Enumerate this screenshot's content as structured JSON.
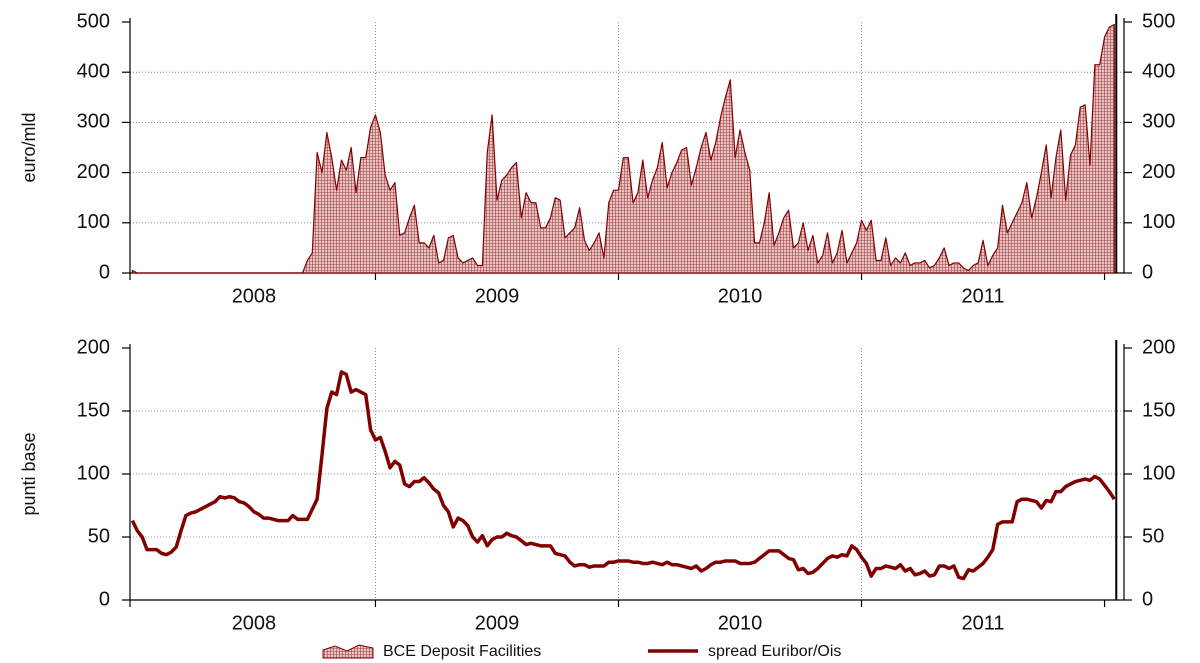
{
  "chart_data": [
    {
      "type": "area",
      "ylabel": "euro/mld",
      "x": [
        2008,
        2008.02,
        2008.04,
        2008.06,
        2008.08,
        2008.1,
        2008.12,
        2008.14,
        2008.16,
        2008.18,
        2008.2,
        2008.22,
        2008.24,
        2008.26,
        2008.28,
        2008.3,
        2008.32,
        2008.34,
        2008.36,
        2008.38,
        2008.4,
        2008.42,
        2008.44,
        2008.46,
        2008.48,
        2008.5,
        2008.52,
        2008.54,
        2008.56,
        2008.58,
        2008.6,
        2008.62,
        2008.64,
        2008.66,
        2008.68,
        2008.7,
        2008.72,
        2008.74,
        2008.76,
        2008.78,
        2008.8,
        2008.82,
        2008.84,
        2008.86,
        2008.88,
        2008.9,
        2008.92,
        2008.94,
        2008.96,
        2008.98,
        2009,
        2009.02,
        2009.04,
        2009.06,
        2009.08,
        2009.1,
        2009.12,
        2009.14,
        2009.16,
        2009.18,
        2009.2,
        2009.22,
        2009.24,
        2009.26,
        2009.28,
        2009.3,
        2009.32,
        2009.34,
        2009.36,
        2009.38,
        2009.4,
        2009.42,
        2009.44,
        2009.46,
        2009.48,
        2009.5,
        2009.52,
        2009.54,
        2009.56,
        2009.58,
        2009.6,
        2009.62,
        2009.64,
        2009.66,
        2009.68,
        2009.7,
        2009.72,
        2009.74,
        2009.76,
        2009.78,
        2009.8,
        2009.82,
        2009.84,
        2009.86,
        2009.88,
        2009.9,
        2009.92,
        2009.94,
        2009.96,
        2009.98,
        2010,
        2010.02,
        2010.04,
        2010.06,
        2010.08,
        2010.1,
        2010.12,
        2010.14,
        2010.16,
        2010.18,
        2010.2,
        2010.22,
        2010.24,
        2010.26,
        2010.28,
        2010.3,
        2010.32,
        2010.34,
        2010.36,
        2010.38,
        2010.4,
        2010.42,
        2010.44,
        2010.46,
        2010.48,
        2010.5,
        2010.52,
        2010.54,
        2010.56,
        2010.58,
        2010.6,
        2010.62,
        2010.64,
        2010.66,
        2010.68,
        2010.7,
        2010.72,
        2010.74,
        2010.76,
        2010.78,
        2010.8,
        2010.82,
        2010.84,
        2010.86,
        2010.88,
        2010.9,
        2010.92,
        2010.94,
        2010.96,
        2010.98,
        2011,
        2011.02,
        2011.04,
        2011.06,
        2011.08,
        2011.1,
        2011.12,
        2011.14,
        2011.16,
        2011.18,
        2011.2,
        2011.22,
        2011.24,
        2011.26,
        2011.28,
        2011.3,
        2011.32,
        2011.34,
        2011.36,
        2011.38,
        2011.4,
        2011.42,
        2011.44,
        2011.46,
        2011.48,
        2011.5,
        2011.52,
        2011.54,
        2011.56,
        2011.58,
        2011.6,
        2011.62,
        2011.64,
        2011.66,
        2011.68,
        2011.7,
        2011.72,
        2011.74,
        2011.76,
        2011.78,
        2011.8,
        2011.82,
        2011.84,
        2011.86,
        2011.88,
        2011.9,
        2011.92,
        2011.94,
        2011.96,
        2011.98,
        2012,
        2012.02,
        2012.04
      ],
      "series": [
        {
          "name": "BCE Deposit Facilities",
          "color": "#800000",
          "values": [
            5,
            0,
            0,
            0,
            0,
            0,
            0,
            0,
            0,
            0,
            0,
            0,
            0,
            0,
            0,
            0,
            0,
            0,
            0,
            0,
            0,
            0,
            0,
            0,
            0,
            0,
            0,
            0,
            0,
            0,
            0,
            0,
            0,
            0,
            0,
            0,
            25,
            40,
            240,
            200,
            280,
            230,
            165,
            225,
            205,
            250,
            160,
            230,
            230,
            290,
            315,
            280,
            195,
            165,
            180,
            75,
            80,
            110,
            135,
            60,
            60,
            50,
            75,
            20,
            25,
            70,
            75,
            30,
            20,
            25,
            30,
            15,
            15,
            240,
            315,
            145,
            185,
            195,
            210,
            220,
            110,
            160,
            140,
            140,
            90,
            90,
            110,
            150,
            145,
            70,
            80,
            90,
            130,
            65,
            45,
            60,
            80,
            30,
            140,
            165,
            165,
            230,
            230,
            140,
            160,
            225,
            150,
            185,
            210,
            260,
            170,
            200,
            220,
            245,
            250,
            175,
            210,
            250,
            280,
            225,
            260,
            310,
            350,
            385,
            230,
            285,
            240,
            205,
            60,
            60,
            100,
            160,
            55,
            80,
            110,
            125,
            50,
            60,
            100,
            45,
            75,
            20,
            35,
            80,
            20,
            40,
            85,
            20,
            40,
            60,
            105,
            85,
            105,
            25,
            25,
            70,
            15,
            30,
            20,
            40,
            15,
            20,
            20,
            25,
            10,
            15,
            30,
            50,
            15,
            20,
            20,
            10,
            5,
            15,
            20,
            65,
            15,
            35,
            50,
            135,
            80,
            100,
            120,
            140,
            180,
            110,
            150,
            200,
            255,
            150,
            230,
            285,
            145,
            235,
            255,
            330,
            335,
            215,
            415,
            415,
            470,
            490,
            495
          ]
        }
      ],
      "xlim": [
        2007.99,
        2012.08
      ],
      "xticks": [
        {
          "value": 2008.5,
          "label": "2008"
        },
        {
          "value": 2009.5,
          "label": "2009"
        },
        {
          "value": 2010.5,
          "label": "2010"
        },
        {
          "value": 2011.5,
          "label": "2011"
        }
      ],
      "ylim": [
        0,
        500
      ],
      "yticks": [
        0,
        100,
        200,
        300,
        400,
        500
      ],
      "grid": true
    },
    {
      "type": "line",
      "ylabel": "punti base",
      "x": [
        2008,
        2008.02,
        2008.04,
        2008.06,
        2008.08,
        2008.1,
        2008.12,
        2008.14,
        2008.16,
        2008.18,
        2008.2,
        2008.22,
        2008.24,
        2008.26,
        2008.28,
        2008.3,
        2008.32,
        2008.34,
        2008.36,
        2008.38,
        2008.4,
        2008.42,
        2008.44,
        2008.46,
        2008.48,
        2008.5,
        2008.52,
        2008.54,
        2008.56,
        2008.58,
        2008.6,
        2008.62,
        2008.64,
        2008.66,
        2008.68,
        2008.7,
        2008.72,
        2008.74,
        2008.76,
        2008.78,
        2008.8,
        2008.82,
        2008.84,
        2008.86,
        2008.88,
        2008.9,
        2008.92,
        2008.94,
        2008.96,
        2008.98,
        2009,
        2009.02,
        2009.04,
        2009.06,
        2009.08,
        2009.1,
        2009.12,
        2009.14,
        2009.16,
        2009.18,
        2009.2,
        2009.22,
        2009.24,
        2009.26,
        2009.28,
        2009.3,
        2009.32,
        2009.34,
        2009.36,
        2009.38,
        2009.4,
        2009.42,
        2009.44,
        2009.46,
        2009.48,
        2009.5,
        2009.52,
        2009.54,
        2009.56,
        2009.58,
        2009.6,
        2009.62,
        2009.64,
        2009.66,
        2009.68,
        2009.7,
        2009.72,
        2009.74,
        2009.76,
        2009.78,
        2009.8,
        2009.82,
        2009.84,
        2009.86,
        2009.88,
        2009.9,
        2009.92,
        2009.94,
        2009.96,
        2009.98,
        2010,
        2010.02,
        2010.04,
        2010.06,
        2010.08,
        2010.1,
        2010.12,
        2010.14,
        2010.16,
        2010.18,
        2010.2,
        2010.22,
        2010.24,
        2010.26,
        2010.28,
        2010.3,
        2010.32,
        2010.34,
        2010.36,
        2010.38,
        2010.4,
        2010.42,
        2010.44,
        2010.46,
        2010.48,
        2010.5,
        2010.52,
        2010.54,
        2010.56,
        2010.58,
        2010.6,
        2010.62,
        2010.64,
        2010.66,
        2010.68,
        2010.7,
        2010.72,
        2010.74,
        2010.76,
        2010.78,
        2010.8,
        2010.82,
        2010.84,
        2010.86,
        2010.88,
        2010.9,
        2010.92,
        2010.94,
        2010.96,
        2010.98,
        2011,
        2011.02,
        2011.04,
        2011.06,
        2011.08,
        2011.1,
        2011.12,
        2011.14,
        2011.16,
        2011.18,
        2011.2,
        2011.22,
        2011.24,
        2011.26,
        2011.28,
        2011.3,
        2011.32,
        2011.34,
        2011.36,
        2011.38,
        2011.4,
        2011.42,
        2011.44,
        2011.46,
        2011.48,
        2011.5,
        2011.52,
        2011.54,
        2011.56,
        2011.58,
        2011.6,
        2011.62,
        2011.64,
        2011.66,
        2011.68,
        2011.7,
        2011.72,
        2011.74,
        2011.76,
        2011.78,
        2011.8,
        2011.82,
        2011.84,
        2011.86,
        2011.88,
        2011.9,
        2011.92,
        2011.94,
        2011.96,
        2011.98,
        2012,
        2012.02,
        2012.04
      ],
      "series": [
        {
          "name": "spread Euribor/Ois",
          "color": "#800000",
          "values": [
            63,
            55,
            50,
            40,
            40,
            40,
            37,
            36,
            38,
            42,
            55,
            67,
            69,
            70,
            72,
            74,
            76,
            78,
            82,
            81,
            82,
            81,
            78,
            77,
            74,
            70,
            68,
            65,
            65,
            64,
            63,
            63,
            63,
            67,
            64,
            64,
            64,
            72,
            80,
            115,
            152,
            165,
            163,
            181,
            179,
            165,
            167,
            165,
            163,
            135,
            127,
            129,
            118,
            105,
            110,
            107,
            92,
            90,
            94,
            94,
            97,
            93,
            88,
            85,
            75,
            70,
            58,
            65,
            63,
            59,
            50,
            46,
            51,
            43,
            48,
            50,
            50,
            53,
            51,
            50,
            47,
            44,
            45,
            44,
            43,
            43,
            43,
            37,
            36,
            35,
            30,
            27,
            28,
            28,
            26,
            27,
            27,
            27,
            30,
            30,
            31,
            31,
            31,
            30,
            30,
            29,
            29,
            30,
            29,
            28,
            30,
            28,
            28,
            27,
            26,
            25,
            27,
            23,
            25,
            28,
            30,
            30,
            31,
            31,
            31,
            29,
            29,
            29,
            30,
            33,
            36,
            39,
            39,
            39,
            36,
            33,
            32,
            24,
            25,
            21,
            22,
            25,
            29,
            33,
            35,
            34,
            36,
            35,
            43,
            40,
            34,
            29,
            19,
            25,
            25,
            27,
            26,
            25,
            28,
            23,
            25,
            20,
            21,
            23,
            19,
            20,
            27,
            27,
            25,
            27,
            18,
            17,
            24,
            23,
            26,
            29,
            34,
            40,
            60,
            62,
            62,
            62,
            78,
            80,
            80,
            79,
            78,
            73,
            79,
            78,
            86,
            86,
            90,
            92,
            94,
            95,
            96,
            95,
            98,
            96,
            91,
            86,
            80
          ]
        }
      ],
      "xlim": [
        2007.99,
        2012.08
      ],
      "xticks": [
        {
          "value": 2008.5,
          "label": "2008"
        },
        {
          "value": 2009.5,
          "label": "2009"
        },
        {
          "value": 2010.5,
          "label": "2010"
        },
        {
          "value": 2011.5,
          "label": "2011"
        }
      ],
      "ylim": [
        0,
        200
      ],
      "yticks": [
        0,
        50,
        100,
        150,
        200
      ],
      "grid": true
    }
  ]
}
